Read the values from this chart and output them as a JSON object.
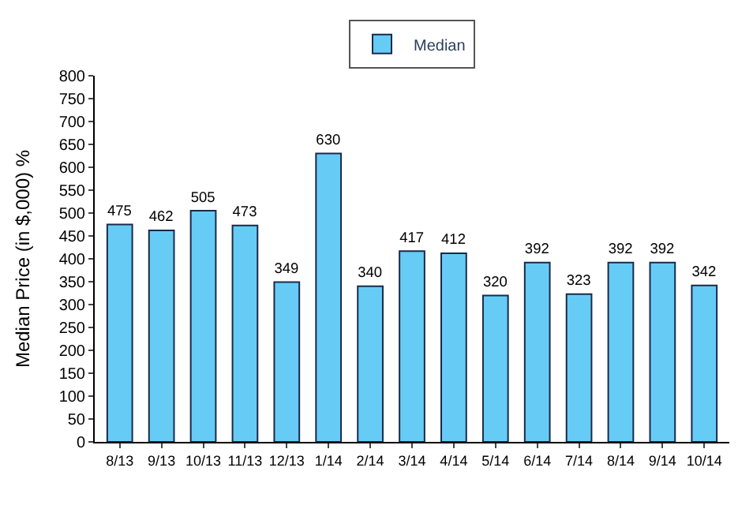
{
  "chart_data": {
    "type": "bar",
    "ylabel": "Median Price (in $,000) %",
    "categories": [
      "8/13",
      "9/13",
      "10/13",
      "11/13",
      "12/13",
      "1/14",
      "2/14",
      "3/14",
      "4/14",
      "5/14",
      "6/14",
      "7/14",
      "8/14",
      "9/14",
      "10/14"
    ],
    "series": [
      {
        "name": "Median",
        "color": "#66ccf5",
        "values": [
          475,
          462,
          505,
          473,
          349,
          630,
          340,
          417,
          412,
          320,
          392,
          323,
          392,
          392,
          342
        ]
      }
    ],
    "ylim": [
      0,
      800
    ],
    "yticks": [
      0,
      50,
      100,
      150,
      200,
      250,
      300,
      350,
      400,
      450,
      500,
      550,
      600,
      650,
      700,
      750,
      800
    ],
    "data_labels": true,
    "legend": "top"
  }
}
